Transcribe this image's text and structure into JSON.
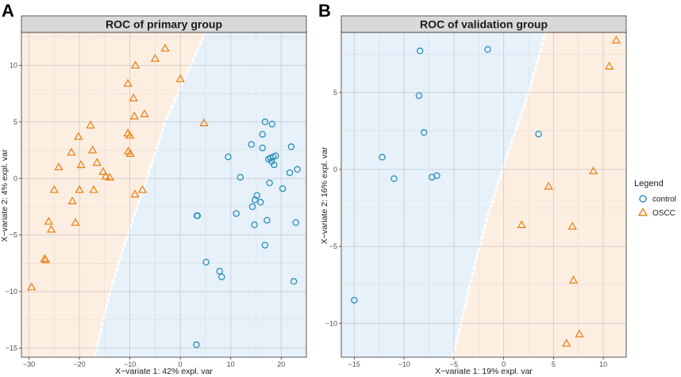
{
  "figure": {
    "legend_title": "Legend",
    "legend_entries": [
      {
        "name": "control",
        "marker": "circle",
        "color": "#2a8fbd"
      },
      {
        "name": "OSCC",
        "marker": "triangle",
        "color": "#e8861a"
      }
    ]
  },
  "colors": {
    "control": "#2a8fbd",
    "oscc": "#e8861a",
    "control_region": "#e7f1fa",
    "oscc_region": "#fdeee2",
    "strip": "#d9d9d9"
  },
  "chart_data": [
    {
      "type": "scatter",
      "panel_label": "A",
      "title": "ROC of primary group",
      "xlabel": "X−variate 1: 42% expl. var",
      "ylabel": "X−variate 2: 4% expl. var",
      "xlim": [
        -31.5,
        25
      ],
      "ylim": [
        -15.8,
        12.9
      ],
      "xticks": [
        -30,
        -20,
        -10,
        0,
        10,
        20
      ],
      "xtick_labels": [
        "−30",
        "−20",
        "−10",
        "0",
        "10",
        "20"
      ],
      "yticks": [
        -15,
        -10,
        -5,
        0,
        5,
        10
      ],
      "ytick_labels": [
        "−15",
        "−10",
        "−5",
        "0",
        "5",
        "10"
      ],
      "boundary": {
        "left_region": "OSCC",
        "right_region": "control",
        "points": [
          [
            -17,
            -15.8
          ],
          [
            -14.5,
            -11
          ],
          [
            -11.2,
            -6
          ],
          [
            -7,
            -0.5
          ],
          [
            -3,
            5
          ],
          [
            0.5,
            8.5
          ],
          [
            5,
            12.9
          ]
        ]
      },
      "series": [
        {
          "name": "control",
          "points": [
            [
              3.3,
              -3.3
            ],
            [
              3.4,
              -3.3
            ],
            [
              5.1,
              -7.4
            ],
            [
              7.8,
              -8.2
            ],
            [
              8.2,
              -8.7
            ],
            [
              3.2,
              -14.7
            ],
            [
              9.5,
              1.9
            ],
            [
              11.1,
              -3.1
            ],
            [
              11.9,
              0.1
            ],
            [
              14.1,
              3.0
            ],
            [
              14.3,
              -2.5
            ],
            [
              14.7,
              -4.1
            ],
            [
              14.8,
              -1.9
            ],
            [
              15.2,
              -1.5
            ],
            [
              15.9,
              -2.1
            ],
            [
              16.3,
              3.9
            ],
            [
              16.3,
              2.7
            ],
            [
              16.8,
              5.0
            ],
            [
              16.8,
              -5.9
            ],
            [
              17.2,
              -3.7
            ],
            [
              17.5,
              1.7
            ],
            [
              17.7,
              -0.4
            ],
            [
              17.9,
              1.8
            ],
            [
              18.1,
              1.5
            ],
            [
              18.2,
              4.8
            ],
            [
              18.4,
              1.9
            ],
            [
              18.6,
              1.2
            ],
            [
              18.9,
              2.0
            ],
            [
              20.3,
              -0.9
            ],
            [
              21.7,
              0.5
            ],
            [
              22.0,
              2.8
            ],
            [
              22.5,
              -9.1
            ],
            [
              22.9,
              -3.9
            ],
            [
              23.2,
              0.8
            ]
          ]
        },
        {
          "name": "OSCC",
          "points": [
            [
              -29.5,
              -9.6
            ],
            [
              -26.9,
              -7.1
            ],
            [
              -26.7,
              -7.2
            ],
            [
              -26.1,
              -3.8
            ],
            [
              -25.6,
              -4.5
            ],
            [
              -25.0,
              -1.0
            ],
            [
              -24.1,
              1.0
            ],
            [
              -21.6,
              2.3
            ],
            [
              -21.4,
              -2.0
            ],
            [
              -20.8,
              -3.9
            ],
            [
              -20.2,
              3.7
            ],
            [
              -20.0,
              -1.0
            ],
            [
              -19.7,
              1.2
            ],
            [
              -17.8,
              4.7
            ],
            [
              -17.4,
              2.5
            ],
            [
              -17.2,
              -1.0
            ],
            [
              -16.5,
              1.4
            ],
            [
              -15.3,
              0.6
            ],
            [
              -14.8,
              0.2
            ],
            [
              -14.0,
              0.1
            ],
            [
              -10.4,
              8.4
            ],
            [
              -10.4,
              4.0
            ],
            [
              -10.3,
              2.4
            ],
            [
              -10.0,
              3.8
            ],
            [
              -9.9,
              2.2
            ],
            [
              -9.3,
              7.1
            ],
            [
              -9.1,
              5.5
            ],
            [
              -9.0,
              -1.4
            ],
            [
              -8.9,
              10.0
            ],
            [
              -7.5,
              -1.0
            ],
            [
              -7.1,
              5.7
            ],
            [
              -5.0,
              10.6
            ],
            [
              -3.0,
              11.5
            ],
            [
              0.0,
              8.8
            ],
            [
              4.7,
              4.9
            ]
          ]
        }
      ]
    },
    {
      "type": "scatter",
      "panel_label": "B",
      "title": "ROC of validation group",
      "xlabel": "X−variate 1: 19% expl. var",
      "ylabel": "X−variate 2: 16% expl. var",
      "xlim": [
        -16.3,
        12.3
      ],
      "ylim": [
        -12.2,
        8.9
      ],
      "xticks": [
        -15,
        -10,
        -5,
        0,
        5,
        10
      ],
      "xtick_labels": [
        "−15",
        "−10",
        "−5",
        "0",
        "5",
        "10"
      ],
      "yticks": [
        -10,
        -5,
        0,
        5
      ],
      "ytick_labels": [
        "−10",
        "−5",
        "0",
        "5"
      ],
      "boundary": {
        "left_region": "control",
        "right_region": "OSCC",
        "points": [
          [
            -5.1,
            -12.2
          ],
          [
            -3.2,
            -7
          ],
          [
            -1.6,
            -3
          ],
          [
            0.4,
            1
          ],
          [
            2.5,
            5
          ],
          [
            4.2,
            8.9
          ]
        ]
      },
      "series": [
        {
          "name": "control",
          "points": [
            [
              -15.0,
              -8.5
            ],
            [
              -12.2,
              0.8
            ],
            [
              -11.0,
              -0.6
            ],
            [
              -8.4,
              7.7
            ],
            [
              -8.5,
              4.8
            ],
            [
              -8.0,
              2.4
            ],
            [
              -7.2,
              -0.5
            ],
            [
              -6.7,
              -0.4
            ],
            [
              -1.6,
              7.8
            ],
            [
              3.5,
              2.3
            ]
          ]
        },
        {
          "name": "OSCC",
          "points": [
            [
              11.3,
              8.4
            ],
            [
              10.6,
              6.7
            ],
            [
              9.0,
              -0.1
            ],
            [
              4.5,
              -1.1
            ],
            [
              1.8,
              -3.6
            ],
            [
              6.9,
              -3.7
            ],
            [
              7.0,
              -7.2
            ],
            [
              7.6,
              -10.7
            ],
            [
              6.3,
              -11.3
            ]
          ]
        }
      ]
    }
  ]
}
